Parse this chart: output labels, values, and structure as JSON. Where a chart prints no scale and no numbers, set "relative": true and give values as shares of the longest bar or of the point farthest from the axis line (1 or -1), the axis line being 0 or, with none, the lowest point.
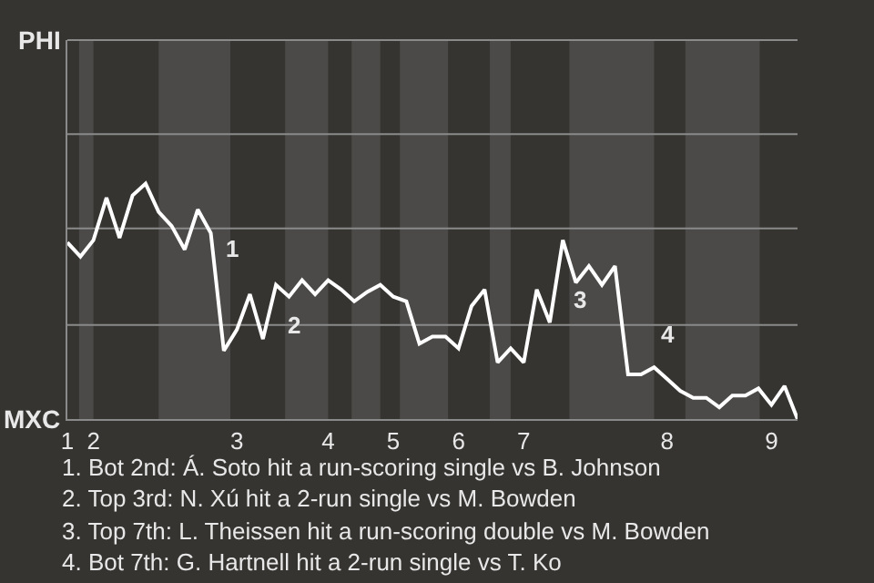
{
  "chart_data": {
    "type": "line",
    "relative": true,
    "categories": [
      "1",
      null,
      "2",
      null,
      null,
      null,
      null,
      null,
      null,
      null,
      null,
      null,
      null,
      "3",
      null,
      null,
      null,
      null,
      null,
      null,
      "4",
      null,
      null,
      null,
      null,
      "5",
      null,
      null,
      null,
      null,
      "6",
      null,
      null,
      null,
      null,
      "7",
      null,
      null,
      null,
      null,
      null,
      null,
      null,
      null,
      null,
      null,
      "8",
      null,
      null,
      null,
      null,
      null,
      null,
      null,
      "9",
      null,
      null
    ],
    "series": [
      {
        "color": "#ffffff",
        "values": [
          0.75,
          0.69,
          0.76,
          0.94,
          0.77,
          0.95,
          1,
          0.88,
          0.82,
          0.72,
          0.89,
          0.79,
          0.29,
          0.38,
          0.53,
          0.34,
          0.57,
          0.52,
          0.59,
          0.53,
          0.59,
          0.55,
          0.5,
          0.54,
          0.57,
          0.52,
          0.5,
          0.32,
          0.35,
          0.35,
          0.3,
          0.48,
          0.55,
          0.24,
          0.3,
          0.24,
          0.55,
          0.41,
          0.76,
          0.58,
          0.65,
          0.57,
          0.65,
          0.19,
          0.19,
          0.22,
          0.17,
          0.12,
          0.09,
          0.09,
          0.05,
          0.1,
          0.1,
          0.13,
          0.06,
          0.14,
          0
        ]
      }
    ],
    "ref_lines": [
      {
        "axis": "y",
        "value": 0.4,
        "color": "#8a8a8a"
      },
      {
        "axis": "y",
        "value": 0.81,
        "color": "#8a8a8a"
      },
      {
        "axis": "y",
        "value": 1.21,
        "color": "#8a8a8a"
      }
    ],
    "marker": "none",
    "line_style": "solid",
    "annotations": [
      "1",
      "2",
      "3",
      "4",
      "PHI",
      "MXC",
      "1. Bot 2nd: Á. Soto hit a run-scoring single vs B. Johnson",
      "2. Top 3rd: N. Xú hit a 2-run single vs M. Bowden",
      "3. Top 7th: L. Theissen hit a run-scoring double vs M. Bowden",
      "4. Bot 7th: G. Hartnell hit a 2-run single vs T. Ko"
    ]
  }
}
